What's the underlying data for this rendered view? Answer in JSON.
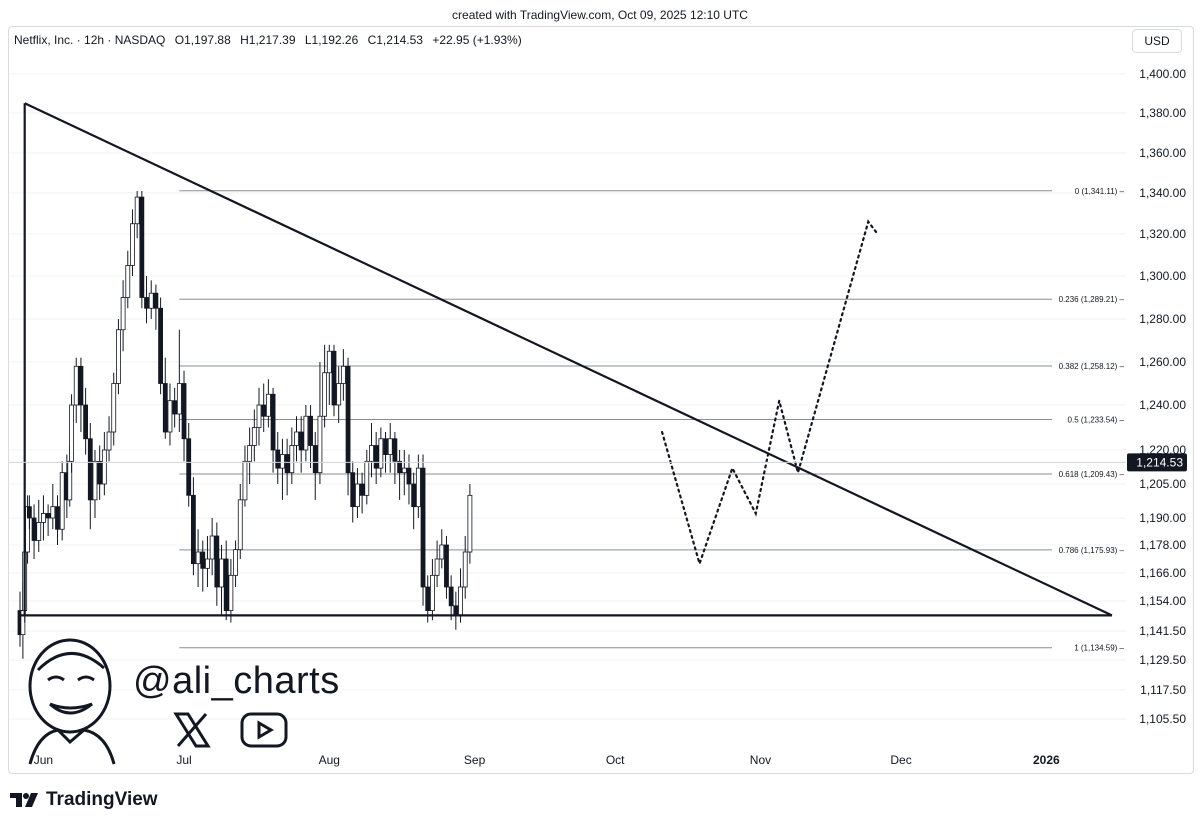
{
  "header": {
    "created_text": "created with TradingView.com, Oct 09, 2025 12:10 UTC"
  },
  "legend": {
    "symbol": "Netflix, Inc. · 12h · NASDAQ",
    "open": "O1,197.88",
    "high": "H1,217.39",
    "low": "L1,192.26",
    "close": "C1,214.53",
    "change": "+22.95 (+1.93%)"
  },
  "currency": "USD",
  "branding": {
    "handle": "@ali_charts",
    "logo_text": "TradingView"
  },
  "chart_data": {
    "type": "candlestick",
    "y_axis": {
      "ticks": [
        1105.5,
        1117.5,
        1129.5,
        1141.5,
        1154,
        1166,
        1178,
        1190,
        1205,
        1220,
        1240,
        1260,
        1280,
        1300,
        1320,
        1340,
        1360,
        1380,
        1400
      ],
      "tick_labels": [
        "1,105.50",
        "1,117.50",
        "1,129.50",
        "1,141.50",
        "1,154.00",
        "1,166.00",
        "1,178.00",
        "1,190.00",
        "1,205.00",
        "1,220.00",
        "1,240.00",
        "1,260.00",
        "1,280.00",
        "1,300.00",
        "1,320.00",
        "1,340.00",
        "1,360.00",
        "1,380.00",
        "1,400.00"
      ],
      "current_price_label": "1,214.53",
      "current_price": 1214.53
    },
    "x_axis": {
      "labels": [
        "Jun",
        "Jul",
        "Aug",
        "Sep",
        "Oct",
        "Nov",
        "Dec",
        "2026"
      ],
      "label_dates": [
        "2025-06-01",
        "2025-07-01",
        "2025-08-01",
        "2025-09-01",
        "2025-10-01",
        "2025-11-01",
        "2025-12-01",
        "2026-01-01"
      ],
      "range": [
        "2025-05-27",
        "2026-01-18"
      ]
    },
    "fib_levels": [
      {
        "label": "0 (1,341.11)",
        "value": 1341.11
      },
      {
        "label": "0.236 (1,289.21)",
        "value": 1289.21
      },
      {
        "label": "0.382 (1,258.12)",
        "value": 1258.12
      },
      {
        "label": "0.5 (1,233.54)",
        "value": 1233.54
      },
      {
        "label": "0.618 (1,209.43)",
        "value": 1209.43
      },
      {
        "label": "0.786 (1,175.93)",
        "value": 1175.93
      },
      {
        "label": "1 (1,134.59)",
        "value": 1134.59
      }
    ],
    "fib_start_date": "2025-06-30",
    "triangle": {
      "apex_high": {
        "date": "2025-05-28",
        "price": 1385
      },
      "end": {
        "date": "2026-01-15",
        "price": 1148
      },
      "base_price": 1148,
      "base_start": "2025-05-27"
    },
    "projection": [
      [
        "2025-10-11",
        1228
      ],
      [
        "2025-10-19",
        1170
      ],
      [
        "2025-10-26",
        1212
      ],
      [
        "2025-10-31",
        1192
      ],
      [
        "2025-11-05",
        1242
      ],
      [
        "2025-11-09",
        1210
      ],
      [
        "2025-11-24",
        1326
      ],
      [
        "2025-11-26",
        1320
      ]
    ],
    "candles": [
      [
        "2025-05-27",
        1150,
        1140,
        1158,
        1135
      ],
      [
        "2025-05-27",
        1140,
        1150,
        1162,
        1130
      ],
      [
        "2025-05-28",
        1150,
        1175,
        1180,
        1145
      ],
      [
        "2025-05-28",
        1175,
        1195,
        1200,
        1170
      ],
      [
        "2025-05-29",
        1195,
        1190,
        1200,
        1185
      ],
      [
        "2025-05-30",
        1190,
        1180,
        1196,
        1172
      ],
      [
        "2025-05-31",
        1180,
        1188,
        1198,
        1175
      ],
      [
        "2025-06-01",
        1188,
        1192,
        1200,
        1180
      ],
      [
        "2025-06-02",
        1192,
        1190,
        1196,
        1182
      ],
      [
        "2025-06-03",
        1190,
        1195,
        1205,
        1185
      ],
      [
        "2025-06-04",
        1195,
        1185,
        1200,
        1178
      ],
      [
        "2025-06-05",
        1185,
        1210,
        1215,
        1180
      ],
      [
        "2025-06-06",
        1210,
        1198,
        1218,
        1190
      ],
      [
        "2025-06-06",
        1198,
        1215,
        1222,
        1195
      ],
      [
        "2025-06-07",
        1215,
        1240,
        1245,
        1210
      ],
      [
        "2025-06-08",
        1240,
        1258,
        1262,
        1232
      ],
      [
        "2025-06-09",
        1258,
        1240,
        1262,
        1228
      ],
      [
        "2025-06-10",
        1240,
        1225,
        1248,
        1218
      ],
      [
        "2025-06-11",
        1225,
        1198,
        1232,
        1185
      ],
      [
        "2025-06-12",
        1198,
        1215,
        1220,
        1190
      ],
      [
        "2025-06-13",
        1215,
        1205,
        1222,
        1198
      ],
      [
        "2025-06-14",
        1205,
        1220,
        1228,
        1200
      ],
      [
        "2025-06-15",
        1220,
        1228,
        1235,
        1215
      ],
      [
        "2025-06-16",
        1228,
        1250,
        1255,
        1222
      ],
      [
        "2025-06-17",
        1250,
        1275,
        1280,
        1245
      ],
      [
        "2025-06-18",
        1275,
        1290,
        1298,
        1265
      ],
      [
        "2025-06-19",
        1290,
        1305,
        1312,
        1285
      ],
      [
        "2025-06-20",
        1305,
        1325,
        1332,
        1300
      ],
      [
        "2025-06-21",
        1325,
        1338,
        1341,
        1318
      ],
      [
        "2025-06-22",
        1338,
        1290,
        1341,
        1285
      ],
      [
        "2025-06-23",
        1290,
        1285,
        1300,
        1278
      ],
      [
        "2025-06-24",
        1285,
        1292,
        1298,
        1280
      ],
      [
        "2025-06-25",
        1292,
        1285,
        1296,
        1275
      ],
      [
        "2025-06-26",
        1285,
        1250,
        1290,
        1245
      ],
      [
        "2025-06-27",
        1250,
        1228,
        1262,
        1225
      ],
      [
        "2025-06-28",
        1228,
        1242,
        1250,
        1222
      ],
      [
        "2025-06-29",
        1242,
        1236,
        1248,
        1230
      ],
      [
        "2025-06-30",
        1236,
        1250,
        1275,
        1228
      ],
      [
        "2025-07-01",
        1250,
        1225,
        1256,
        1215
      ],
      [
        "2025-07-02",
        1225,
        1200,
        1232,
        1195
      ],
      [
        "2025-07-03",
        1200,
        1170,
        1208,
        1165
      ],
      [
        "2025-07-04",
        1170,
        1175,
        1185,
        1160
      ],
      [
        "2025-07-05",
        1175,
        1168,
        1180,
        1158
      ],
      [
        "2025-07-06",
        1168,
        1172,
        1182,
        1160
      ],
      [
        "2025-07-07",
        1172,
        1182,
        1190,
        1165
      ],
      [
        "2025-07-08",
        1182,
        1160,
        1188,
        1152
      ],
      [
        "2025-07-09",
        1160,
        1172,
        1178,
        1148
      ],
      [
        "2025-07-10",
        1172,
        1150,
        1180,
        1146
      ],
      [
        "2025-07-11",
        1150,
        1165,
        1172,
        1145
      ],
      [
        "2025-07-12",
        1165,
        1176,
        1180,
        1160
      ],
      [
        "2025-07-13",
        1176,
        1198,
        1205,
        1172
      ],
      [
        "2025-07-14",
        1198,
        1215,
        1222,
        1195
      ],
      [
        "2025-07-15",
        1215,
        1222,
        1230,
        1205
      ],
      [
        "2025-07-16",
        1222,
        1230,
        1238,
        1215
      ],
      [
        "2025-07-17",
        1230,
        1240,
        1248,
        1222
      ],
      [
        "2025-07-18",
        1240,
        1235,
        1250,
        1228
      ],
      [
        "2025-07-19",
        1235,
        1245,
        1252,
        1230
      ],
      [
        "2025-07-20",
        1245,
        1220,
        1248,
        1210
      ],
      [
        "2025-07-21",
        1220,
        1212,
        1228,
        1205
      ],
      [
        "2025-07-22",
        1212,
        1218,
        1225,
        1198
      ],
      [
        "2025-07-23",
        1218,
        1210,
        1225,
        1200
      ],
      [
        "2025-07-24",
        1210,
        1222,
        1230,
        1205
      ],
      [
        "2025-07-25",
        1222,
        1228,
        1235,
        1215
      ],
      [
        "2025-07-26",
        1228,
        1220,
        1235,
        1210
      ],
      [
        "2025-07-27",
        1220,
        1235,
        1240,
        1215
      ],
      [
        "2025-07-28",
        1235,
        1222,
        1240,
        1212
      ],
      [
        "2025-07-29",
        1222,
        1210,
        1228,
        1198
      ],
      [
        "2025-07-30",
        1210,
        1235,
        1260,
        1205
      ],
      [
        "2025-07-31",
        1235,
        1255,
        1268,
        1230
      ],
      [
        "2025-08-01",
        1255,
        1265,
        1268,
        1240
      ],
      [
        "2025-08-02",
        1265,
        1240,
        1268,
        1235
      ],
      [
        "2025-08-03",
        1240,
        1250,
        1258,
        1232
      ],
      [
        "2025-08-04",
        1250,
        1258,
        1266,
        1242
      ],
      [
        "2025-08-05",
        1258,
        1210,
        1262,
        1200
      ],
      [
        "2025-08-06",
        1210,
        1195,
        1215,
        1188
      ],
      [
        "2025-08-07",
        1195,
        1205,
        1212,
        1190
      ],
      [
        "2025-08-08",
        1205,
        1200,
        1210,
        1192
      ],
      [
        "2025-08-09",
        1200,
        1215,
        1220,
        1196
      ],
      [
        "2025-08-10",
        1215,
        1222,
        1232,
        1208
      ],
      [
        "2025-08-11",
        1222,
        1212,
        1228,
        1205
      ],
      [
        "2025-08-12",
        1212,
        1225,
        1230,
        1208
      ],
      [
        "2025-08-13",
        1225,
        1218,
        1228,
        1210
      ],
      [
        "2025-08-14",
        1218,
        1225,
        1232,
        1210
      ],
      [
        "2025-08-15",
        1225,
        1215,
        1228,
        1205
      ],
      [
        "2025-08-16",
        1215,
        1210,
        1220,
        1198
      ],
      [
        "2025-08-17",
        1210,
        1212,
        1220,
        1200
      ],
      [
        "2025-08-18",
        1212,
        1205,
        1218,
        1196
      ],
      [
        "2025-08-19",
        1205,
        1195,
        1210,
        1185
      ],
      [
        "2025-08-20",
        1195,
        1212,
        1218,
        1190
      ],
      [
        "2025-08-21",
        1212,
        1160,
        1218,
        1152
      ],
      [
        "2025-08-22",
        1160,
        1150,
        1165,
        1145
      ],
      [
        "2025-08-23",
        1150,
        1165,
        1172,
        1146
      ],
      [
        "2025-08-24",
        1165,
        1172,
        1180,
        1160
      ],
      [
        "2025-08-25",
        1172,
        1178,
        1185,
        1168
      ],
      [
        "2025-08-26",
        1178,
        1160,
        1182,
        1155
      ],
      [
        "2025-08-27",
        1160,
        1152,
        1165,
        1146
      ],
      [
        "2025-08-28",
        1152,
        1148,
        1158,
        1142
      ],
      [
        "2025-08-29",
        1148,
        1160,
        1168,
        1145
      ],
      [
        "2025-08-30",
        1160,
        1175,
        1182,
        1155
      ],
      [
        "2025-08-31",
        1175,
        1200,
        1205,
        1170
      ]
    ]
  }
}
